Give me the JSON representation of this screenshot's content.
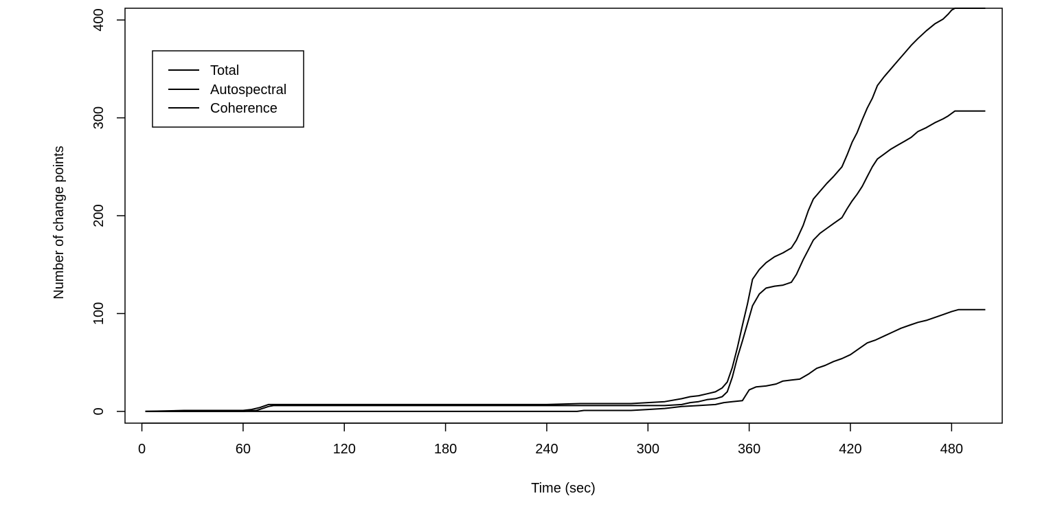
{
  "chart_data": {
    "type": "line",
    "title": "",
    "xlabel": "Time (sec)",
    "ylabel": "Number of change points",
    "xlim": [
      -10,
      510
    ],
    "ylim": [
      -12,
      412
    ],
    "x_ticks": [
      0,
      60,
      120,
      180,
      240,
      300,
      360,
      420,
      480
    ],
    "y_ticks": [
      0,
      100,
      200,
      300,
      400
    ],
    "x_tick_labels": [
      "0",
      "60",
      "120",
      "180",
      "240",
      "300",
      "360",
      "420",
      "480"
    ],
    "y_tick_labels": [
      "0",
      "100",
      "200",
      "300",
      "400"
    ],
    "grid": false,
    "legend": {
      "position": "top-left",
      "entries": [
        "Total",
        "Autospectral",
        "Coherence"
      ]
    },
    "series": [
      {
        "name": "Total",
        "color": "#000000",
        "points": [
          [
            2,
            0
          ],
          [
            25,
            1
          ],
          [
            60,
            1
          ],
          [
            65,
            2
          ],
          [
            70,
            4
          ],
          [
            75,
            7
          ],
          [
            120,
            7
          ],
          [
            180,
            7
          ],
          [
            240,
            7
          ],
          [
            260,
            8
          ],
          [
            290,
            8
          ],
          [
            300,
            9
          ],
          [
            310,
            10
          ],
          [
            320,
            13
          ],
          [
            325,
            15
          ],
          [
            330,
            16
          ],
          [
            335,
            18
          ],
          [
            340,
            20
          ],
          [
            344,
            24
          ],
          [
            347,
            30
          ],
          [
            350,
            45
          ],
          [
            353,
            65
          ],
          [
            356,
            88
          ],
          [
            359,
            110
          ],
          [
            362,
            135
          ],
          [
            366,
            145
          ],
          [
            370,
            152
          ],
          [
            375,
            158
          ],
          [
            380,
            162
          ],
          [
            385,
            167
          ],
          [
            388,
            175
          ],
          [
            392,
            190
          ],
          [
            395,
            205
          ],
          [
            398,
            217
          ],
          [
            402,
            225
          ],
          [
            406,
            233
          ],
          [
            410,
            240
          ],
          [
            415,
            250
          ],
          [
            418,
            262
          ],
          [
            421,
            275
          ],
          [
            424,
            285
          ],
          [
            427,
            298
          ],
          [
            430,
            310
          ],
          [
            433,
            320
          ],
          [
            436,
            333
          ],
          [
            440,
            342
          ],
          [
            444,
            350
          ],
          [
            448,
            358
          ],
          [
            452,
            366
          ],
          [
            456,
            374
          ],
          [
            460,
            381
          ],
          [
            465,
            389
          ],
          [
            470,
            396
          ],
          [
            475,
            401
          ],
          [
            478,
            406
          ],
          [
            480,
            410
          ],
          [
            482,
            412
          ],
          [
            500,
            412
          ]
        ]
      },
      {
        "name": "Autospectral",
        "color": "#000000",
        "points": [
          [
            2,
            0
          ],
          [
            60,
            0
          ],
          [
            68,
            1
          ],
          [
            75,
            5
          ],
          [
            78,
            6
          ],
          [
            240,
            6
          ],
          [
            290,
            6
          ],
          [
            300,
            6
          ],
          [
            310,
            6
          ],
          [
            320,
            7
          ],
          [
            325,
            9
          ],
          [
            330,
            10
          ],
          [
            335,
            12
          ],
          [
            340,
            13
          ],
          [
            344,
            15
          ],
          [
            347,
            20
          ],
          [
            350,
            35
          ],
          [
            353,
            55
          ],
          [
            356,
            72
          ],
          [
            359,
            90
          ],
          [
            362,
            108
          ],
          [
            366,
            120
          ],
          [
            370,
            126
          ],
          [
            375,
            128
          ],
          [
            380,
            129
          ],
          [
            385,
            132
          ],
          [
            388,
            140
          ],
          [
            392,
            155
          ],
          [
            395,
            165
          ],
          [
            398,
            175
          ],
          [
            402,
            182
          ],
          [
            406,
            187
          ],
          [
            410,
            192
          ],
          [
            415,
            198
          ],
          [
            418,
            207
          ],
          [
            421,
            215
          ],
          [
            424,
            222
          ],
          [
            427,
            230
          ],
          [
            430,
            240
          ],
          [
            433,
            250
          ],
          [
            436,
            258
          ],
          [
            440,
            263
          ],
          [
            444,
            268
          ],
          [
            448,
            272
          ],
          [
            452,
            276
          ],
          [
            456,
            280
          ],
          [
            460,
            286
          ],
          [
            465,
            290
          ],
          [
            470,
            295
          ],
          [
            475,
            299
          ],
          [
            478,
            302
          ],
          [
            482,
            307
          ],
          [
            500,
            307
          ]
        ]
      },
      {
        "name": "Coherence",
        "color": "#000000",
        "points": [
          [
            2,
            0
          ],
          [
            240,
            0
          ],
          [
            258,
            0
          ],
          [
            262,
            1
          ],
          [
            290,
            1
          ],
          [
            300,
            2
          ],
          [
            310,
            3
          ],
          [
            320,
            5
          ],
          [
            330,
            6
          ],
          [
            340,
            7
          ],
          [
            345,
            9
          ],
          [
            350,
            10
          ],
          [
            356,
            11
          ],
          [
            360,
            22
          ],
          [
            364,
            25
          ],
          [
            370,
            26
          ],
          [
            376,
            28
          ],
          [
            380,
            31
          ],
          [
            385,
            32
          ],
          [
            390,
            33
          ],
          [
            395,
            38
          ],
          [
            400,
            44
          ],
          [
            405,
            47
          ],
          [
            410,
            51
          ],
          [
            415,
            54
          ],
          [
            420,
            58
          ],
          [
            425,
            64
          ],
          [
            430,
            70
          ],
          [
            435,
            73
          ],
          [
            440,
            77
          ],
          [
            445,
            81
          ],
          [
            450,
            85
          ],
          [
            455,
            88
          ],
          [
            460,
            91
          ],
          [
            465,
            93
          ],
          [
            470,
            96
          ],
          [
            475,
            99
          ],
          [
            480,
            102
          ],
          [
            484,
            104
          ],
          [
            500,
            104
          ]
        ]
      }
    ]
  }
}
